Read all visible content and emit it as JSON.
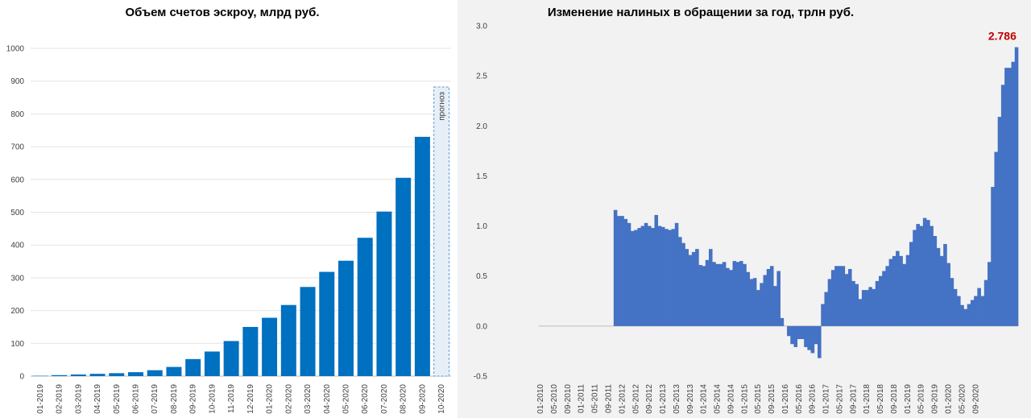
{
  "chart_data": [
    {
      "type": "bar",
      "title": "Объем счетов эскроу, млрд руб.",
      "xlabel": "",
      "ylabel": "",
      "ylim": [
        0,
        1000
      ],
      "yticks": [
        0,
        100,
        200,
        300,
        400,
        500,
        600,
        700,
        800,
        900,
        1000
      ],
      "grid": true,
      "categories": [
        "01-2019",
        "02-2019",
        "03-2019",
        "04-2019",
        "05-2019",
        "06-2019",
        "07-2019",
        "08-2019",
        "09-2019",
        "10-2019",
        "11-2019",
        "12-2019",
        "01-2020",
        "02-2020",
        "03-2020",
        "04-2020",
        "05-2020",
        "06-2020",
        "07-2020",
        "08-2020",
        "09-2020",
        "10-2020"
      ],
      "values": [
        1,
        3,
        5,
        7,
        9,
        12,
        18,
        28,
        52,
        75,
        107,
        150,
        178,
        217,
        272,
        318,
        352,
        422,
        502,
        605,
        730,
        null
      ],
      "annotation": "прогноз",
      "color": "#0070c0"
    },
    {
      "type": "bar",
      "title": "Изменение налиных в обращении за год, трлн руб.",
      "xlabel": "",
      "ylabel": "",
      "ylim": [
        -0.5,
        3.0
      ],
      "yticks": [
        "-0.5",
        "0.0",
        "0.5",
        "1.0",
        "1.5",
        "2.0",
        "2.5",
        "3.0"
      ],
      "grid": false,
      "tick_labels": [
        "01-2010",
        "05-2010",
        "09-2010",
        "01-2011",
        "05-2011",
        "09-2011",
        "01-2012",
        "05-2012",
        "09-2012",
        "01-2013",
        "05-2013",
        "09-2013",
        "01-2014",
        "05-2014",
        "09-2014",
        "01-2015",
        "05-2015",
        "09-2015",
        "01-2016",
        "05-2016",
        "09-2016",
        "01-2017",
        "05-2017",
        "09-2017",
        "01-2018",
        "05-2018",
        "09-2018",
        "01-2019",
        "05-2019",
        "09-2019",
        "01-2020",
        "05-2020",
        "09-2020"
      ],
      "start": "01-2010",
      "values": [
        0,
        0,
        0,
        0,
        0,
        0,
        0,
        0,
        0,
        0,
        0,
        0,
        0,
        0,
        0,
        0,
        0,
        0,
        0,
        0,
        0,
        0,
        1.16,
        1.1,
        1.1,
        1.07,
        1.03,
        0.95,
        0.96,
        0.98,
        1.0,
        1.03,
        1.0,
        0.98,
        1.11,
        1.0,
        0.99,
        0.97,
        0.96,
        0.97,
        1.03,
        0.89,
        0.83,
        0.77,
        0.71,
        0.74,
        0.77,
        0.61,
        0.6,
        0.66,
        0.77,
        0.64,
        0.62,
        0.62,
        0.64,
        0.58,
        0.56,
        0.65,
        0.64,
        0.65,
        0.62,
        0.54,
        0.47,
        0.48,
        0.36,
        0.43,
        0.51,
        0.57,
        0.6,
        0.4,
        0.55,
        0.08,
        0.0,
        -0.1,
        -0.18,
        -0.21,
        -0.13,
        -0.13,
        -0.21,
        -0.24,
        -0.27,
        -0.18,
        -0.32,
        0.22,
        0.34,
        0.47,
        0.56,
        0.6,
        0.6,
        0.6,
        0.52,
        0.57,
        0.45,
        0.42,
        0.27,
        0.36,
        0.36,
        0.39,
        0.37,
        0.45,
        0.5,
        0.55,
        0.6,
        0.67,
        0.7,
        0.75,
        0.7,
        0.62,
        0.71,
        0.84,
        0.96,
        1.02,
        1.0,
        1.08,
        1.06,
        1.0,
        0.9,
        0.78,
        0.7,
        0.82,
        0.63,
        0.48,
        0.37,
        0.3,
        0.21,
        0.17,
        0.22,
        0.26,
        0.3,
        0.38,
        0.3,
        0.46,
        0.64,
        1.39,
        1.74,
        2.09,
        2.41,
        2.58,
        2.58,
        2.64,
        2.786
      ],
      "color": "#4472c4",
      "annotation": "2.786",
      "annotation_color": "#c00000"
    }
  ]
}
